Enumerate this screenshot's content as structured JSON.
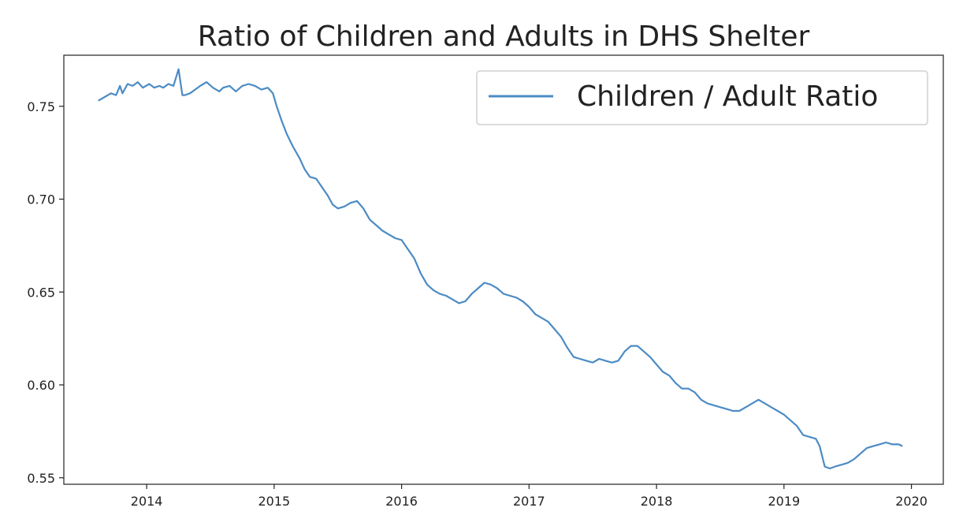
{
  "chart_data": {
    "type": "line",
    "title": "Ratio of Children and Adults in DHS Shelter",
    "xlabel": "",
    "ylabel": "",
    "x_ticks": [
      "2014",
      "2015",
      "2016",
      "2017",
      "2018",
      "2019",
      "2020"
    ],
    "y_ticks": [
      "0.55",
      "0.60",
      "0.65",
      "0.70",
      "0.75"
    ],
    "xlim": [
      2013.35,
      2020.25
    ],
    "ylim": [
      0.5465,
      0.7775
    ],
    "grid": false,
    "legend": {
      "position": "top-right"
    },
    "series": [
      {
        "name": "Children / Adult Ratio",
        "color": "#4c8bc4",
        "x": [
          2013.62,
          2013.67,
          2013.72,
          2013.76,
          2013.79,
          2013.81,
          2013.85,
          2013.89,
          2013.93,
          2013.97,
          2014.02,
          2014.06,
          2014.1,
          2014.13,
          2014.17,
          2014.21,
          2014.25,
          2014.28,
          2014.3,
          2014.34,
          2014.38,
          2014.42,
          2014.47,
          2014.52,
          2014.57,
          2014.6,
          2014.65,
          2014.7,
          2014.75,
          2014.8,
          2014.85,
          2014.9,
          2014.95,
          2014.99,
          2015.02,
          2015.06,
          2015.1,
          2015.15,
          2015.2,
          2015.24,
          2015.28,
          2015.33,
          2015.38,
          2015.42,
          2015.46,
          2015.5,
          2015.55,
          2015.6,
          2015.65,
          2015.7,
          2015.75,
          2015.8,
          2015.85,
          2015.9,
          2015.95,
          2016.0,
          2016.05,
          2016.1,
          2016.15,
          2016.2,
          2016.25,
          2016.3,
          2016.35,
          2016.4,
          2016.45,
          2016.5,
          2016.55,
          2016.6,
          2016.65,
          2016.7,
          2016.75,
          2016.8,
          2016.85,
          2016.9,
          2016.95,
          2017.0,
          2017.05,
          2017.1,
          2017.15,
          2017.2,
          2017.25,
          2017.3,
          2017.35,
          2017.4,
          2017.45,
          2017.5,
          2017.55,
          2017.6,
          2017.65,
          2017.7,
          2017.75,
          2017.8,
          2017.85,
          2017.9,
          2017.95,
          2018.0,
          2018.05,
          2018.1,
          2018.15,
          2018.2,
          2018.25,
          2018.3,
          2018.35,
          2018.4,
          2018.45,
          2018.5,
          2018.55,
          2018.6,
          2018.65,
          2018.7,
          2018.75,
          2018.8,
          2018.85,
          2018.9,
          2018.95,
          2019.0,
          2019.05,
          2019.1,
          2019.15,
          2019.2,
          2019.25,
          2019.28,
          2019.32,
          2019.36,
          2019.4,
          2019.45,
          2019.5,
          2019.55,
          2019.6,
          2019.65,
          2019.7,
          2019.75,
          2019.8,
          2019.85,
          2019.9,
          2019.93
        ],
        "values": [
          0.753,
          0.755,
          0.757,
          0.756,
          0.761,
          0.757,
          0.762,
          0.761,
          0.763,
          0.76,
          0.762,
          0.76,
          0.761,
          0.76,
          0.762,
          0.761,
          0.77,
          0.756,
          0.756,
          0.757,
          0.759,
          0.761,
          0.763,
          0.76,
          0.758,
          0.76,
          0.761,
          0.758,
          0.761,
          0.762,
          0.761,
          0.759,
          0.76,
          0.757,
          0.75,
          0.742,
          0.735,
          0.728,
          0.722,
          0.716,
          0.712,
          0.711,
          0.706,
          0.702,
          0.697,
          0.695,
          0.696,
          0.698,
          0.699,
          0.695,
          0.689,
          0.686,
          0.683,
          0.681,
          0.679,
          0.678,
          0.673,
          0.668,
          0.66,
          0.654,
          0.651,
          0.649,
          0.648,
          0.646,
          0.644,
          0.645,
          0.649,
          0.652,
          0.655,
          0.654,
          0.652,
          0.649,
          0.648,
          0.647,
          0.645,
          0.642,
          0.638,
          0.636,
          0.634,
          0.63,
          0.626,
          0.62,
          0.615,
          0.614,
          0.613,
          0.612,
          0.614,
          0.613,
          0.612,
          0.613,
          0.618,
          0.621,
          0.621,
          0.618,
          0.615,
          0.611,
          0.607,
          0.605,
          0.601,
          0.598,
          0.598,
          0.596,
          0.592,
          0.59,
          0.589,
          0.588,
          0.587,
          0.586,
          0.586,
          0.588,
          0.59,
          0.592,
          0.59,
          0.588,
          0.586,
          0.584,
          0.581,
          0.578,
          0.573,
          0.572,
          0.571,
          0.567,
          0.556,
          0.555,
          0.556,
          0.557,
          0.558,
          0.56,
          0.563,
          0.566,
          0.567,
          0.568,
          0.569,
          0.568,
          0.568,
          0.567
        ]
      }
    ]
  }
}
